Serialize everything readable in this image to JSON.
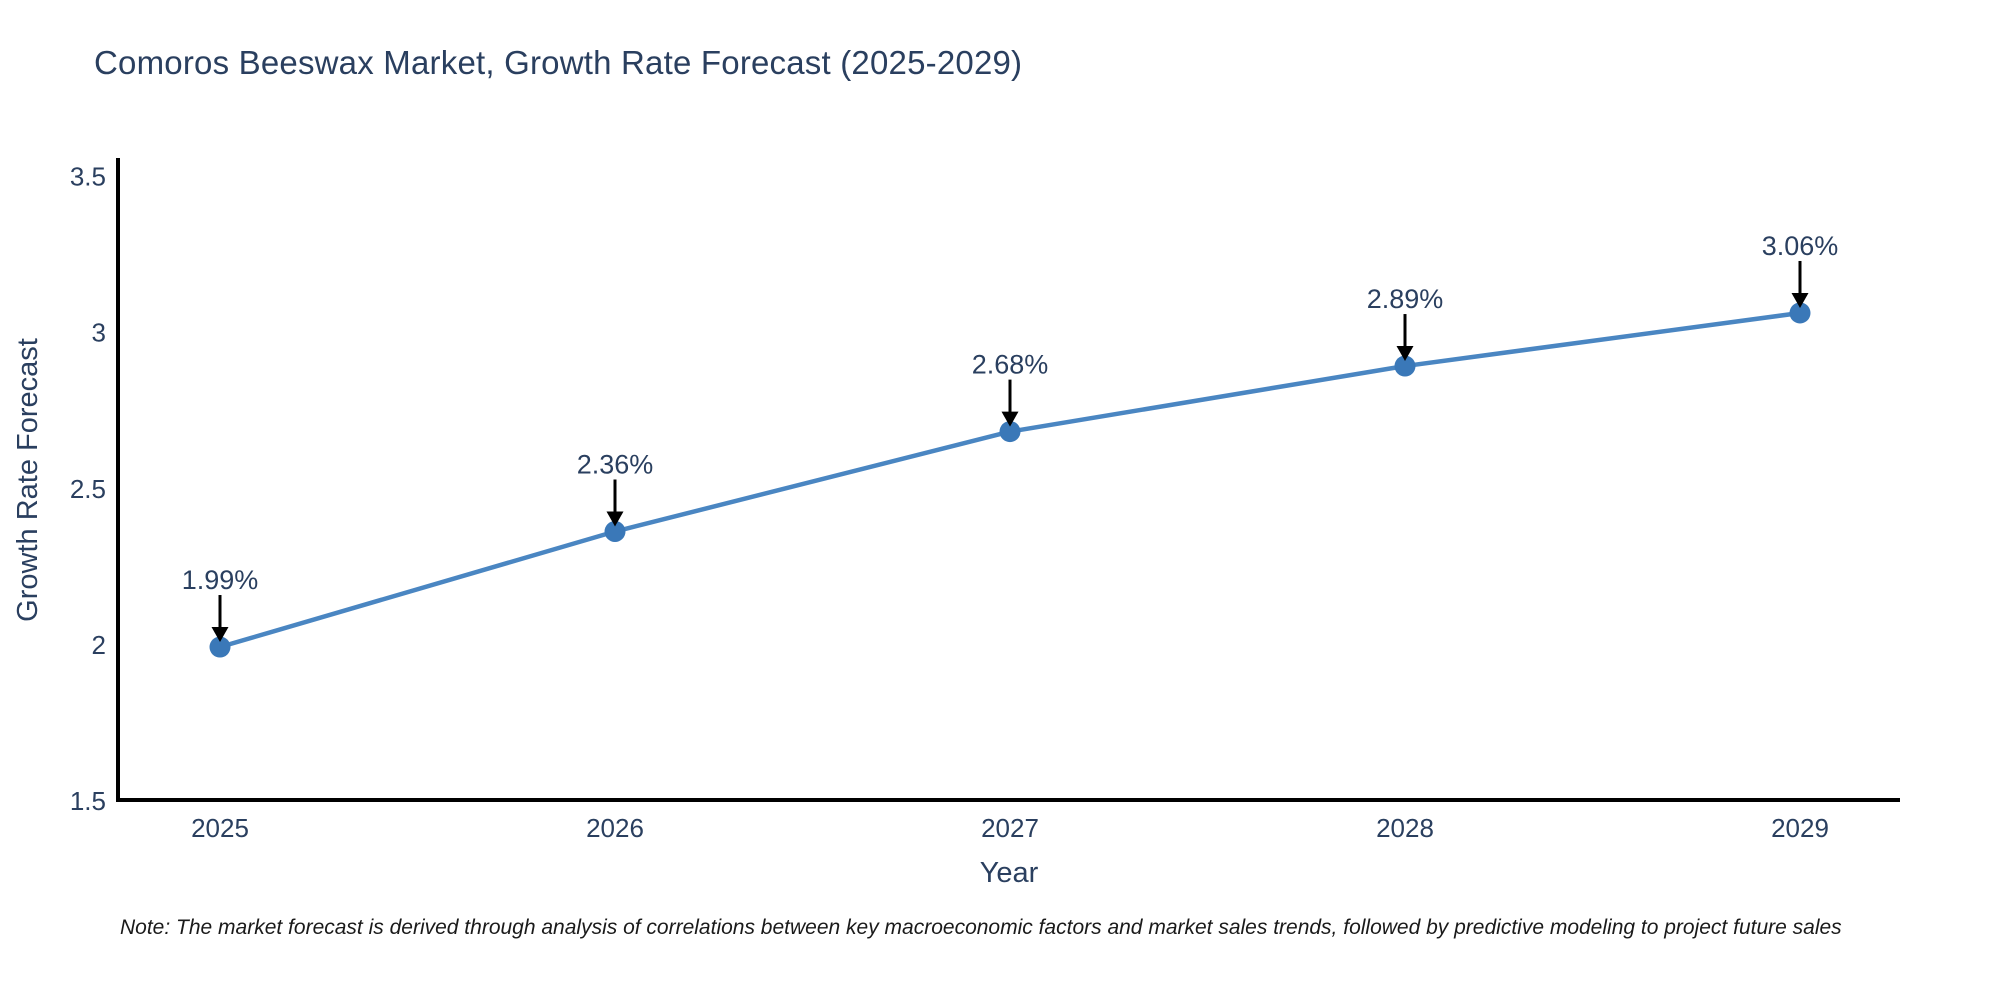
{
  "title": "Comoros Beeswax Market, Growth Rate Forecast (2025-2029)",
  "note": "Note: The market forecast is derived through analysis of correlations between key macroeconomic factors and market sales trends, followed by predictive modeling to project future sales",
  "colors": {
    "title_text": "#2a3f5f",
    "axis_line": "#000000",
    "tick_text": "#2a3f5f",
    "series_line": "#4a86c2",
    "marker_fill": "#3a78b8",
    "arrow": "#000000",
    "note_text": "#1a1a1a",
    "background": "#ffffff"
  },
  "chart_data": {
    "type": "line",
    "title": "Comoros Beeswax Market, Growth Rate Forecast (2025-2029)",
    "categories": [
      "2025",
      "2026",
      "2027",
      "2028",
      "2029"
    ],
    "values": [
      1.99,
      2.36,
      2.68,
      2.89,
      3.06
    ],
    "point_labels": [
      "1.99%",
      "2.36%",
      "2.68%",
      "2.89%",
      "3.06%"
    ],
    "xlabel": "Year",
    "ylabel": "Growth Rate Forecast",
    "ylim": [
      1.5,
      3.55
    ],
    "yticks": [
      1.5,
      2,
      2.5,
      3,
      3.5
    ],
    "grid": false,
    "legend": "none",
    "annotations": "percent value label with downward black arrow above each data point",
    "note": "Note: The market forecast is derived through analysis of correlations between key macroeconomic factors and market sales trends, followed by predictive modeling to project future sales"
  }
}
